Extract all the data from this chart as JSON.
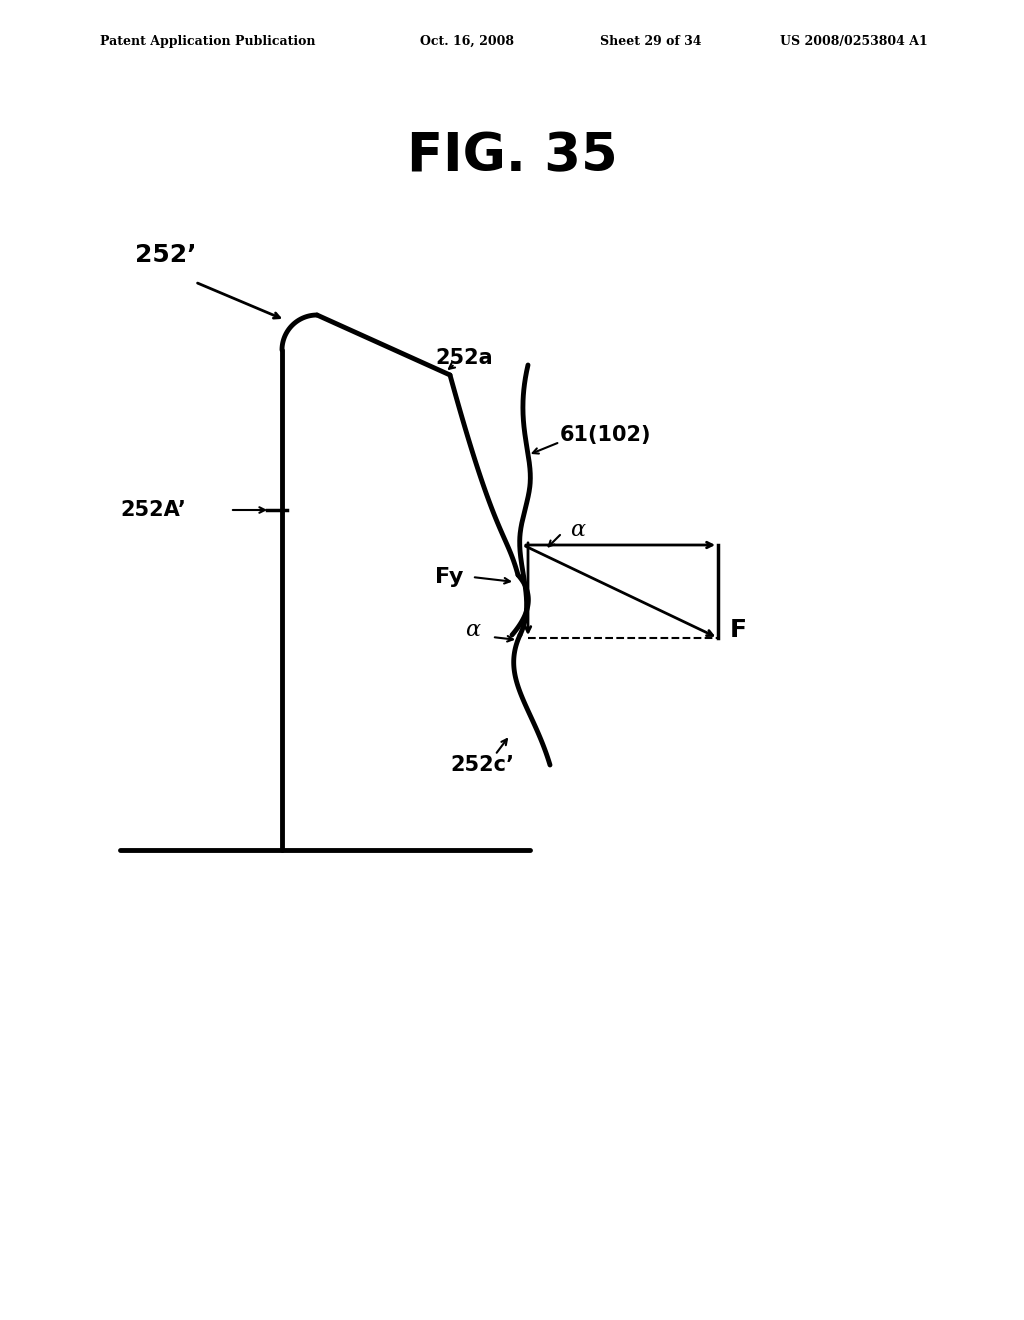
{
  "background_color": "#ffffff",
  "header_text": "Patent Application Publication",
  "header_date": "Oct. 16, 2008",
  "header_sheet": "Sheet 29 of 34",
  "header_patent": "US 2008/0253804 A1",
  "fig_title": "FIG. 35",
  "labels": {
    "252_prime": "252’",
    "252a": "252a",
    "61_102": "61(102)",
    "252A_prime": "252A’",
    "Fy": "Fy",
    "alpha_upper": "α",
    "alpha_lower": "α",
    "F": "F",
    "252c_prime": "252c’"
  }
}
